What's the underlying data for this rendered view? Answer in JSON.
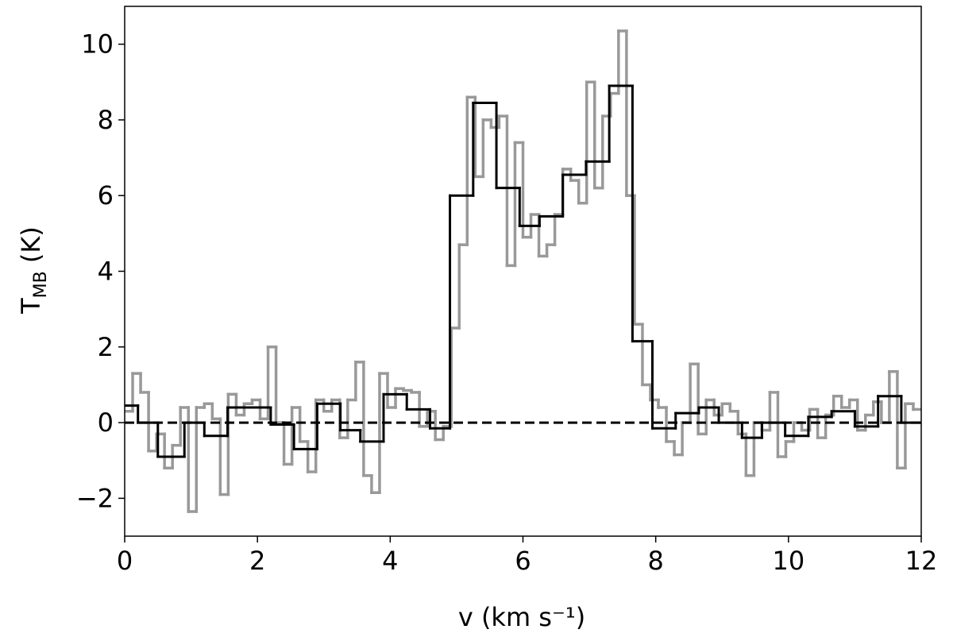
{
  "chart_data": {
    "type": "step",
    "xlabel": "v (km s⁻¹)",
    "ylabel": [
      "T",
      "MB",
      " (K)"
    ],
    "xlim": [
      0,
      12
    ],
    "xticks": [
      0,
      2,
      4,
      6,
      8,
      10,
      12
    ],
    "ylim": [
      -3,
      11
    ],
    "yticks": [
      {
        "value": -2,
        "label": "−2"
      },
      0,
      2,
      4,
      6,
      8,
      10
    ],
    "hline": {
      "value": 0,
      "color": "#000000",
      "style": "dashed"
    },
    "series": [
      {
        "color": "#999999",
        "x": [
          0,
          0.12,
          0.24,
          0.36,
          0.48,
          0.6,
          0.72,
          0.84,
          0.96,
          1.08,
          1.2,
          1.32,
          1.44,
          1.56,
          1.68,
          1.8,
          1.92,
          2.04,
          2.16,
          2.28,
          2.4,
          2.52,
          2.64,
          2.76,
          2.88,
          3.0,
          3.12,
          3.24,
          3.36,
          3.48,
          3.6,
          3.72,
          3.84,
          3.96,
          4.08,
          4.2,
          4.32,
          4.44,
          4.56,
          4.68,
          4.8,
          4.92,
          5.04,
          5.16,
          5.28,
          5.4,
          5.52,
          5.64,
          5.76,
          5.88,
          6.0,
          6.12,
          6.24,
          6.36,
          6.48,
          6.6,
          6.72,
          6.84,
          6.96,
          7.08,
          7.2,
          7.32,
          7.44,
          7.56,
          7.68,
          7.8,
          7.92,
          8.04,
          8.16,
          8.28,
          8.4,
          8.52,
          8.64,
          8.76,
          8.88,
          9.0,
          9.12,
          9.24,
          9.36,
          9.48,
          9.6,
          9.72,
          9.84,
          9.96,
          10.08,
          10.2,
          10.32,
          10.44,
          10.56,
          10.68,
          10.8,
          10.92,
          11.04,
          11.16,
          11.28,
          11.4,
          11.52,
          11.64,
          11.76,
          11.88
        ],
        "values": [
          0.3,
          1.3,
          0.8,
          -0.75,
          -0.3,
          -1.2,
          -0.6,
          0.4,
          -2.35,
          0.4,
          0.5,
          0.1,
          -1.9,
          0.75,
          0.2,
          0.5,
          0.6,
          0.1,
          2.0,
          0.0,
          -1.1,
          0.4,
          -0.5,
          -1.3,
          0.6,
          0.3,
          0.6,
          -0.4,
          0.6,
          1.6,
          -1.4,
          -1.85,
          1.3,
          0.4,
          0.9,
          0.85,
          0.8,
          -0.1,
          0.3,
          -0.45,
          -0.1,
          2.5,
          4.7,
          8.6,
          6.5,
          8.0,
          7.8,
          8.1,
          4.15,
          7.4,
          4.9,
          5.5,
          4.4,
          4.7,
          5.5,
          6.7,
          6.4,
          5.8,
          9.0,
          6.2,
          8.1,
          8.7,
          10.35,
          6.0,
          2.6,
          1.0,
          0.6,
          0.4,
          -0.5,
          -0.85,
          0.0,
          1.55,
          -0.3,
          0.6,
          0.2,
          0.5,
          0.3,
          -0.3,
          -1.4,
          0.0,
          -0.2,
          0.8,
          -0.9,
          -0.5,
          0.0,
          -0.2,
          0.35,
          -0.4,
          0.2,
          0.7,
          0.4,
          0.6,
          -0.2,
          0.2,
          0.55,
          0.0,
          1.35,
          -1.2,
          0.5,
          0.35
        ]
      },
      {
        "color": "#000000",
        "x": [
          0,
          0.2,
          0.5,
          0.9,
          1.2,
          1.55,
          2.2,
          2.55,
          2.9,
          3.25,
          3.55,
          3.9,
          4.25,
          4.6,
          4.9,
          5.25,
          5.6,
          5.95,
          6.25,
          6.6,
          6.95,
          7.3,
          7.65,
          7.95,
          8.3,
          8.65,
          8.95,
          9.3,
          9.6,
          9.95,
          10.3,
          10.65,
          11.0,
          11.35,
          11.7
        ],
        "values": [
          0.45,
          0,
          -0.9,
          0,
          -0.35,
          0.4,
          -0.05,
          -0.7,
          0.5,
          -0.2,
          -0.5,
          0.75,
          0.35,
          -0.15,
          6.0,
          8.45,
          6.2,
          5.2,
          5.45,
          6.55,
          6.9,
          8.9,
          2.15,
          -0.15,
          0.25,
          0.4,
          0,
          -0.4,
          0,
          -0.35,
          0.15,
          0.3,
          -0.1,
          0.7,
          0
        ]
      }
    ]
  }
}
